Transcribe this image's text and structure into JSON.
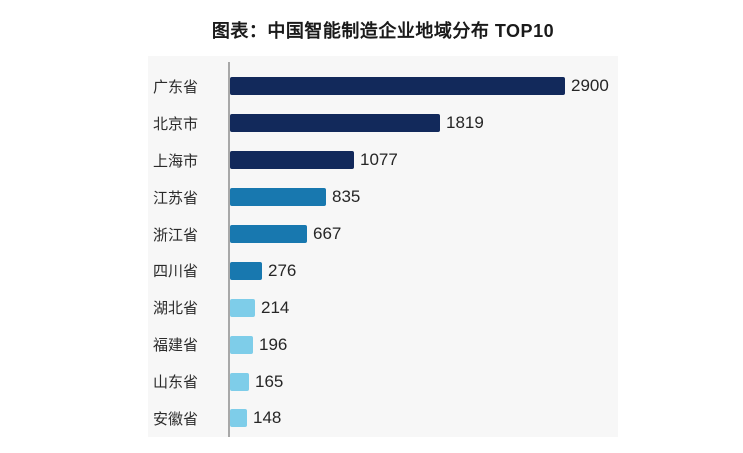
{
  "title": "图表：中国智能制造企业地域分布 TOP10",
  "chart_data": {
    "type": "bar",
    "orientation": "horizontal",
    "title": "图表：中国智能制造企业地域分布 TOP10",
    "categories": [
      "广东省",
      "北京市",
      "上海市",
      "江苏省",
      "浙江省",
      "四川省",
      "湖北省",
      "福建省",
      "山东省",
      "安徽省"
    ],
    "values": [
      2900,
      1819,
      1077,
      835,
      667,
      276,
      214,
      196,
      165,
      148
    ],
    "value_labels": [
      "2900",
      "1819",
      "1077",
      "835",
      "667",
      "276",
      "214",
      "196",
      "165",
      "148"
    ],
    "xlabel": "",
    "ylabel": "",
    "xlim": [
      0,
      3290
    ],
    "grid": false,
    "legend": false,
    "bar_colors": [
      "#12295b",
      "#12295b",
      "#12295b",
      "#1878af",
      "#1878af",
      "#1878af",
      "#7ecde9",
      "#7ecde9",
      "#7ecde9",
      "#7ecde9"
    ]
  },
  "colors": {
    "dark_navy": "#12295b",
    "medium_blue": "#1878af",
    "light_blue": "#7ecde9",
    "panel_background": "#f7f7f7",
    "axis_line": "#a8a8a8",
    "title_text": "#1a1a1a",
    "label_text": "#2b2b2b",
    "value_text": "#262626"
  }
}
